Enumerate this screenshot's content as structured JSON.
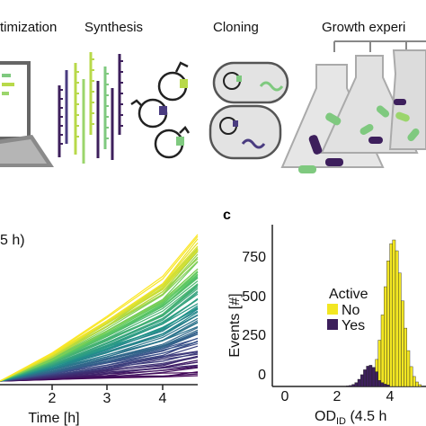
{
  "stages": {
    "optimization": "timization",
    "synthesis": "Synthesis",
    "cloning": "Cloning",
    "growth": "Growth experi"
  },
  "panel_b": {
    "title_fragment": "5 h)",
    "xlabel": "Time [h]",
    "xticks": [
      "2",
      "3",
      "4"
    ]
  },
  "panel_c": {
    "letter": "c",
    "ylabel": "Events [#]",
    "yticks": [
      "750",
      "500",
      "250",
      "0"
    ],
    "xticks": [
      "0",
      "2",
      "4"
    ],
    "xlabel_main": "OD",
    "xlabel_sub": "ID",
    "xlabel_tail": " (4.5 h",
    "legend_title": "Active",
    "legend_items": [
      {
        "label": "No",
        "color": "#f2e622"
      },
      {
        "label": "Yes",
        "color": "#3d1f5c"
      }
    ]
  },
  "colors": {
    "yellow": "#f2e622",
    "purple": "#3d1f5c",
    "green": "#7fc97f",
    "gray": "#e3e3e3"
  }
}
